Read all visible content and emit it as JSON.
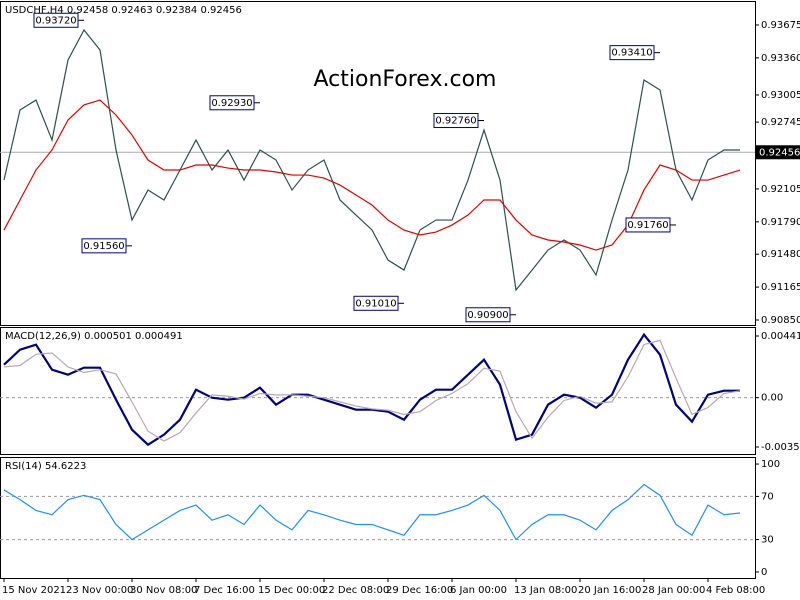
{
  "chart_data": [
    {
      "type": "line",
      "title": "USDCHF,H4  0.92458 0.92463 0.92384 0.92456",
      "watermark": "ActionForex.com",
      "categories": [
        "15 Nov 2021",
        null,
        null,
        null,
        "23 Nov 00:00",
        null,
        null,
        null,
        "30 Nov 08:00",
        null,
        null,
        null,
        "7 Dec 16:00",
        null,
        null,
        null,
        "15 Dec 00:00",
        null,
        null,
        null,
        "22 Dec 08:00",
        null,
        null,
        null,
        "29 Dec 16:00",
        null,
        null,
        null,
        "6 Jan 00:00",
        null,
        null,
        null,
        "13 Jan 08:00",
        null,
        null,
        null,
        "20 Jan 16:00",
        null,
        null,
        null,
        "28 Jan 00:00",
        null,
        null,
        null,
        "4 Feb 08:00",
        null,
        null
      ],
      "series": [
        {
          "name": "USDCHF",
          "color": "#2f4f4f",
          "values": [
            0.9219,
            0.92861,
            0.92956,
            0.92573,
            0.9334,
            0.93627,
            0.93435,
            0.92478,
            0.91807,
            0.92095,
            0.91999,
            0.92286,
            0.92573,
            0.92286,
            0.92478,
            0.9219,
            0.92478,
            0.92382,
            0.92095,
            0.92286,
            0.92382,
            0.91999,
            0.91855,
            0.91712,
            0.91424,
            0.91328,
            0.91712,
            0.91807,
            0.91807,
            0.9219,
            0.92669,
            0.9219,
            0.91137,
            0.91328,
            0.9152,
            0.91616,
            0.9152,
            0.91281,
            0.91807,
            0.92286,
            0.93148,
            0.93052,
            0.92286,
            0.91999,
            0.92382,
            0.92478,
            0.92478
          ]
        },
        {
          "name": "MA",
          "color": "#e00000",
          "values": [
            0.91711,
            0.91999,
            0.92286,
            0.92478,
            0.92765,
            0.92909,
            0.92956,
            0.92813,
            0.92621,
            0.92382,
            0.92286,
            0.92286,
            0.92334,
            0.92334,
            0.92305,
            0.92286,
            0.92286,
            0.92267,
            0.92238,
            0.92238,
            0.92209,
            0.92142,
            0.92047,
            0.91951,
            0.91807,
            0.91711,
            0.91664,
            0.91692,
            0.91759,
            0.91855,
            0.91999,
            0.91999,
            0.91807,
            0.91664,
            0.91616,
            0.91597,
            0.91568,
            0.9152,
            0.91568,
            0.91759,
            0.92095,
            0.92334,
            0.92286,
            0.9219,
            0.9219,
            0.92238,
            0.92286
          ]
        }
      ],
      "ylim": [
        0.90802,
        0.93895
      ],
      "yticks": [
        {
          "value": 0.93675,
          "label": "0.93675"
        },
        {
          "value": 0.9336,
          "label": "0.93360"
        },
        {
          "value": 0.93005,
          "label": "0.93005"
        },
        {
          "value": 0.92745,
          "label": "0.92745"
        },
        {
          "value": 0.92105,
          "label": "0.92105"
        },
        {
          "value": 0.9179,
          "label": "0.91790"
        },
        {
          "value": 0.9148,
          "label": "0.91480"
        },
        {
          "value": 0.91165,
          "label": "0.91165"
        },
        {
          "value": 0.9085,
          "label": "0.90850"
        }
      ],
      "last_price": 0.92456,
      "annotations": [
        {
          "x": 5,
          "value": 0.9372,
          "label": "0.93720"
        },
        {
          "x": 8,
          "value": 0.9156,
          "label": "0.91560"
        },
        {
          "x": 16,
          "value": 0.9293,
          "label": "0.92930"
        },
        {
          "x": 25,
          "value": 0.9101,
          "label": "0.91010"
        },
        {
          "x": 30,
          "value": 0.9276,
          "label": "0.92760"
        },
        {
          "x": 32,
          "value": 0.909,
          "label": "0.90900"
        },
        {
          "x": 41,
          "value": 0.9341,
          "label": "0.93410"
        },
        {
          "x": 42,
          "value": 0.9176,
          "label": "0.91760"
        }
      ]
    },
    {
      "type": "line",
      "title": "MACD(12,26,9) 0.000501 0.000491",
      "series": [
        {
          "name": "MACD",
          "color": "#000080",
          "values": [
            0.002361,
            0.003433,
            0.003791,
            0.002003,
            0.001645,
            0.002146,
            0.002146,
            -0.000143,
            -0.002289,
            -0.003362,
            -0.002647,
            -0.001574,
            0.000572,
            0,
            -0.000143,
            0,
            0.000715,
            -0.000501,
            0.000215,
            0.000215,
            -0.000143,
            -0.000501,
            -0.000858,
            -0.000858,
            -0.001001,
            -0.001574,
            -0.000143,
            0.000572,
            0.000572,
            0.001645,
            0.002718,
            0.00093,
            -0.003004,
            -0.002647,
            -0.000501,
            0.000215,
            0,
            -0.000715,
            0.000215,
            0.002718,
            0.004506,
            0.003076,
            -0.000501,
            -0.001717,
            0.000215,
            0.000501,
            0.000501
          ]
        },
        {
          "name": "Signal",
          "color": "#b8a8b0",
          "values": [
            0.0022,
            0.0023,
            0.0031,
            0.0032,
            0.0022,
            0.0018,
            0.002,
            0.0017,
            -0.0003,
            -0.0024,
            -0.0031,
            -0.0025,
            -0.0011,
            0.0002,
            0.0001,
            -0.0001,
            0.0003,
            0.0002,
            0.0002,
            0.0001,
            0,
            -0.0003,
            -0.0006,
            -0.0008,
            -0.0009,
            -0.0012,
            -0.001,
            -0.0002,
            0.0003,
            0.001,
            0.0021,
            0.0019,
            -0.001,
            -0.0029,
            -0.0014,
            -0.0002,
            0.0001,
            -0.0004,
            -0.0003,
            0.0015,
            0.0038,
            0.0041,
            0.0014,
            -0.0012,
            -0.0007,
            0.0003,
            0.000491
          ]
        }
      ],
      "ylim": [
        -0.0041,
        0.004984
      ],
      "yticks": [
        0.004412,
        {
          "value": 0,
          "label": "0.00"
        },
        -0.003528
      ],
      "levels": [
        0
      ]
    },
    {
      "type": "line",
      "title": "RSI(14) 54.6223",
      "series": [
        {
          "name": "RSI",
          "color": "#1e90ff",
          "values": [
            76,
            67,
            57,
            53,
            67,
            71,
            67,
            44,
            30,
            39,
            48,
            57,
            62,
            48,
            53,
            44,
            62,
            48,
            39,
            57,
            53,
            48,
            44,
            44,
            39,
            34,
            53,
            53,
            57,
            62,
            71,
            57,
            30,
            44,
            53,
            53,
            48,
            39,
            57,
            67,
            81,
            71,
            44,
            34,
            62,
            53,
            54.6223
          ]
        }
      ],
      "ylim": [
        -5.6,
        105.6
      ],
      "yticks": [
        100,
        70,
        30,
        0
      ],
      "levels": [
        70,
        30
      ]
    }
  ]
}
